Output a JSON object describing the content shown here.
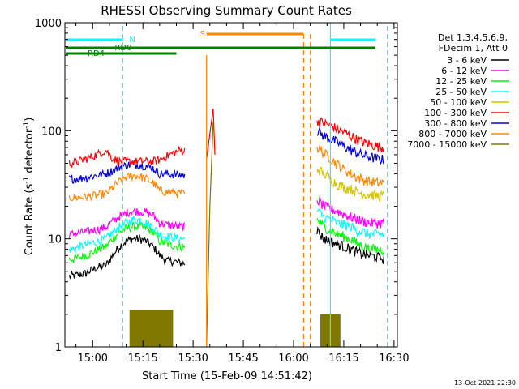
{
  "chart_data": {
    "type": "line",
    "title": "RHESSI Observing Summary Count Rates",
    "xlabel": "Start Time (15-Feb-09 14:51:42)",
    "ylabel_main": "Count Rate (s",
    "ylabel_sup1": "-1",
    "ylabel_mid": " detector",
    "ylabel_sup2": "-1",
    "ylabel_end": ")",
    "yscale": "log",
    "ylim": [
      1,
      1000
    ],
    "xlim": [
      "14:51:42",
      "16:31:00"
    ],
    "x_ticks": [
      "15:00",
      "15:15",
      "15:30",
      "15:45",
      "16:00",
      "16:15",
      "16:30"
    ],
    "y_ticks": [
      "1",
      "10",
      "100",
      "1000"
    ],
    "legend": {
      "placement": "right",
      "header": [
        "Det 1,3,4,5,6,9,",
        "FDecim 1, Att 0"
      ],
      "entries": [
        {
          "label": "3 - 6 keV",
          "color": "#000000"
        },
        {
          "label": "6 - 12 keV",
          "color": "#ff00ff"
        },
        {
          "label": "12 - 25 keV",
          "color": "#00ff00"
        },
        {
          "label": "25 - 50 keV",
          "color": "#00ffff"
        },
        {
          "label": "50 - 100 keV",
          "color": "#d4c400"
        },
        {
          "label": "100 - 300 keV",
          "color": "#ff0000"
        },
        {
          "label": "300 - 800 keV",
          "color": "#0000dd"
        },
        {
          "label": "800 - 7000 keV",
          "color": "#ff8800"
        },
        {
          "label": "7000 - 15000 keV",
          "color": "#807800"
        }
      ]
    },
    "x_minutes": [
      -7,
      -5,
      -2,
      0,
      2,
      4,
      6,
      8,
      10,
      12,
      14,
      16,
      18,
      20,
      22,
      24,
      26,
      27.5
    ],
    "series": [
      {
        "color": "#000000",
        "values": [
          4.5,
          4.6,
          4.8,
          5.2,
          5.5,
          5.7,
          7,
          8.5,
          9.5,
          10,
          10,
          9.5,
          8.5,
          7,
          6.3,
          6.2,
          6,
          5.9
        ]
      },
      {
        "color": "#00ff00",
        "values": [
          6.5,
          6.6,
          7,
          7.5,
          8,
          8.5,
          10,
          11.5,
          12.5,
          13,
          13,
          12.5,
          11.5,
          9.5,
          9,
          8.7,
          8.5,
          8.3
        ]
      },
      {
        "color": "#00ffff",
        "values": [
          8,
          8.2,
          8.8,
          9.2,
          9.5,
          10,
          11.5,
          13,
          14,
          15,
          15,
          14,
          13,
          11,
          10.5,
          10.3,
          10,
          10
        ]
      },
      {
        "color": "#ff00ff",
        "values": [
          11,
          11.2,
          11.6,
          12,
          12.3,
          12.8,
          14.5,
          16,
          17.5,
          18,
          18,
          17.5,
          16.5,
          14,
          13.5,
          13.3,
          13,
          13
        ]
      },
      {
        "color": "#ff8800",
        "values": [
          24,
          24,
          24.5,
          25,
          25.5,
          26,
          30,
          34,
          37,
          38.5,
          38,
          36,
          33,
          28,
          27,
          27,
          26.5,
          26
        ]
      },
      {
        "color": "#0000dd",
        "values": [
          36,
          36,
          37,
          38,
          39,
          40,
          43,
          46,
          48,
          49,
          48.5,
          47,
          45,
          40,
          40,
          39.5,
          39,
          38.5
        ]
      },
      {
        "color": "#ff0000",
        "values": [
          50,
          51,
          55,
          58,
          62,
          66,
          55,
          52,
          52,
          52,
          52,
          52,
          52,
          54,
          58,
          62,
          66,
          65
        ]
      }
    ],
    "x_minutes_post": [
      0,
      2,
      4,
      6,
      8,
      10,
      12,
      14,
      16,
      18,
      20
    ],
    "series_post": [
      {
        "color": "#ff0000",
        "values": [
          125,
          118,
          112,
          104,
          97,
          90,
          83,
          78,
          75,
          72,
          70
        ]
      },
      {
        "color": "#0000dd",
        "values": [
          100,
          90,
          84,
          78,
          72,
          67,
          62,
          59,
          57,
          55,
          54
        ]
      },
      {
        "color": "#ff8800",
        "values": [
          70,
          62,
          56,
          49,
          44,
          40,
          37,
          35,
          34,
          33,
          33
        ]
      },
      {
        "color": "#d4c400",
        "values": [
          45,
          40,
          36,
          32,
          30,
          29,
          27,
          26,
          25.5,
          25,
          25
        ]
      },
      {
        "color": "#ff00ff",
        "values": [
          23,
          20,
          19,
          18,
          17,
          16,
          15,
          14.5,
          14,
          14,
          14
        ]
      },
      {
        "color": "#00ffff",
        "values": [
          18,
          16,
          15,
          14,
          13.5,
          13,
          12,
          11.5,
          11,
          11,
          11
        ]
      },
      {
        "color": "#00ff00",
        "values": [
          15,
          13,
          12,
          11,
          10.5,
          10,
          9,
          8.5,
          8,
          8,
          7.8
        ]
      },
      {
        "color": "#000000",
        "values": [
          12,
          10,
          9.5,
          9,
          8.5,
          8,
          7.5,
          7.2,
          7,
          6.8,
          6.5
        ]
      }
    ],
    "spike": {
      "color": "#ff0000",
      "value": 160
    },
    "annotations": {
      "saa_label": "S",
      "night_label": "N",
      "rd0_label": "RD0",
      "rd4_label": "RD4"
    },
    "timestamp": "13-Oct-2021 22:30"
  }
}
